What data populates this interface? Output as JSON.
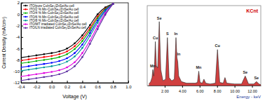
{
  "chart_data": [
    {
      "type": "line",
      "x_label": "Voltage (V)",
      "y_label": "Current Density (mA/cm²)",
      "x": [
        -0.4,
        -0.3,
        -0.2,
        -0.1,
        0.0,
        0.1,
        0.2,
        0.3,
        0.4,
        0.5,
        0.6,
        0.7,
        0.8
      ],
      "series": [
        {
          "name": "ITO/pure CuInSe₂/ZnSe/Au cell",
          "color": "#000000",
          "values": [
            -7.6,
            -7.4,
            -7.2,
            -7.0,
            -6.8,
            -6.5,
            -6.0,
            -5.1,
            -3.7,
            -1.9,
            0.0,
            1.2,
            1.8
          ]
        },
        {
          "name": "ITO/2 % Mn-CuInSe₂/ZnSe/Au cell",
          "color": "#ff0000",
          "values": [
            -8.1,
            -7.9,
            -7.7,
            -7.5,
            -7.3,
            -7.0,
            -6.5,
            -5.6,
            -4.2,
            -2.4,
            -0.4,
            1.0,
            1.8
          ]
        },
        {
          "name": "ITO/4 % Mn-CuInSe₂/ZnSe/Au cell",
          "color": "#00b000",
          "values": [
            -8.6,
            -8.4,
            -8.2,
            -8.0,
            -7.8,
            -7.5,
            -7.0,
            -6.1,
            -4.7,
            -2.8,
            -0.7,
            0.9,
            1.8
          ]
        },
        {
          "name": "ITO/6 % Mn-CuInSe₂/ZnSe/Au cell",
          "color": "#0000ff",
          "values": [
            -9.3,
            -9.1,
            -8.9,
            -8.7,
            -8.5,
            -8.2,
            -7.7,
            -6.8,
            -5.3,
            -3.3,
            -1.1,
            0.7,
            1.8
          ]
        },
        {
          "name": "ITO/8 % Mn-CuInSe₂/ZnSe/Au cell",
          "color": "#009999",
          "values": [
            -9.9,
            -9.7,
            -9.5,
            -9.3,
            -9.1,
            -8.8,
            -8.3,
            -7.4,
            -5.9,
            -3.8,
            -1.5,
            0.5,
            1.8
          ]
        },
        {
          "name": "ITO/MT irradiated CuInSe₂/ZnSe/Au cell",
          "color": "#e000e0",
          "values": [
            -10.9,
            -10.7,
            -10.5,
            -10.3,
            -10.1,
            -9.8,
            -9.3,
            -8.4,
            -6.8,
            -4.6,
            -2.1,
            0.2,
            1.8
          ]
        },
        {
          "name": "ITO/LN irradiated CuInSe₂/ZnSe/Au cell",
          "color": "#5a2ca0",
          "values": [
            -11.6,
            -11.4,
            -11.2,
            -11.0,
            -10.8,
            -10.5,
            -10.0,
            -9.1,
            -7.5,
            -5.2,
            -2.6,
            -0.1,
            1.8
          ]
        }
      ],
      "xlim": [
        -0.4,
        1.0
      ],
      "xticks": [
        -0.4,
        -0.2,
        {
          "value": 0,
          "label": "0.0"
        },
        0.2,
        0.4,
        0.6,
        0.8,
        {
          "value": 1,
          "label": "1.0"
        }
      ],
      "ylim": [
        -12,
        2
      ],
      "yticks": [
        -12,
        -10,
        -8,
        -6,
        -4,
        -2,
        0,
        2
      ],
      "marker": "circle",
      "legend": "upper left",
      "grid": false
    },
    {
      "type": "line",
      "title": "KCnt",
      "x_label": "Energy - keV",
      "x": [
        0.2,
        0.4,
        0.55,
        0.64,
        0.75,
        0.85,
        0.93,
        1.05,
        1.2,
        1.38,
        1.55,
        1.8,
        2.1,
        2.31,
        2.5,
        2.8,
        3.1,
        3.29,
        3.4,
        3.49,
        3.6,
        3.9,
        4.5,
        5.0,
        5.5,
        5.75,
        5.9,
        6.05,
        6.3,
        6.49,
        6.7,
        7.2,
        7.8,
        8.04,
        8.3,
        8.7,
        8.9,
        9.1,
        10.0,
        10.8,
        11.22,
        11.6,
        12.2,
        12.5,
        12.8,
        13.0
      ],
      "values": [
        2,
        5,
        10,
        20,
        12,
        30,
        55,
        25,
        22,
        80,
        20,
        6,
        8,
        60,
        10,
        6,
        8,
        60,
        35,
        30,
        12,
        5,
        3,
        3,
        3,
        4,
        18,
        4,
        3,
        8,
        3,
        2,
        3,
        45,
        4,
        3,
        10,
        3,
        2,
        2,
        12,
        2,
        2,
        5,
        2,
        1
      ],
      "color": "#c00000",
      "xlim": [
        0,
        13
      ],
      "xticks": [
        {
          "value": 2,
          "label": "2.00"
        },
        {
          "value": 4,
          "label": "4.00"
        },
        {
          "value": 6,
          "label": "6.00"
        },
        {
          "value": 8,
          "label": "8.00"
        },
        {
          "value": 10,
          "label": "10.00"
        },
        {
          "value": 12,
          "label": "12.00"
        }
      ],
      "ylim": [
        0,
        100
      ],
      "tick_labels": "x",
      "annotations": [
        {
          "text": "Mn",
          "x": 0.64,
          "y": 22
        },
        {
          "text": "Cu",
          "x": 0.93,
          "y": 57
        },
        {
          "text": "Se",
          "x": 1.38,
          "y": 82
        },
        {
          "text": "S",
          "x": 2.31,
          "y": 62
        },
        {
          "text": "In",
          "x": 3.29,
          "y": 62
        },
        {
          "text": "In",
          "x": 3.6,
          "y": 37
        },
        {
          "text": "Mn",
          "x": 5.9,
          "y": 20
        },
        {
          "text": "Cu",
          "x": 8.04,
          "y": 47
        },
        {
          "text": "Se",
          "x": 11.22,
          "y": 14
        },
        {
          "text": "Se",
          "x": 12.5,
          "y": 7
        }
      ]
    }
  ]
}
